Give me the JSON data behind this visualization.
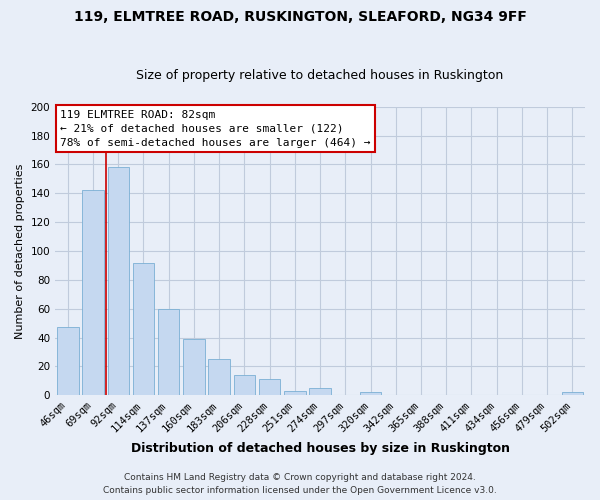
{
  "title": "119, ELMTREE ROAD, RUSKINGTON, SLEAFORD, NG34 9FF",
  "subtitle": "Size of property relative to detached houses in Ruskington",
  "xlabel": "Distribution of detached houses by size in Ruskington",
  "ylabel": "Number of detached properties",
  "categories": [
    "46sqm",
    "69sqm",
    "92sqm",
    "114sqm",
    "137sqm",
    "160sqm",
    "183sqm",
    "206sqm",
    "228sqm",
    "251sqm",
    "274sqm",
    "297sqm",
    "320sqm",
    "342sqm",
    "365sqm",
    "388sqm",
    "411sqm",
    "434sqm",
    "456sqm",
    "479sqm",
    "502sqm"
  ],
  "values": [
    47,
    142,
    158,
    92,
    60,
    39,
    25,
    14,
    11,
    3,
    5,
    0,
    2,
    0,
    0,
    0,
    0,
    0,
    0,
    0,
    2
  ],
  "bar_color": "#c5d8f0",
  "bar_edge_color": "#7bafd4",
  "vline_x_index": 1.5,
  "vline_color": "#cc0000",
  "annotation_title": "119 ELMTREE ROAD: 82sqm",
  "annotation_line1": "← 21% of detached houses are smaller (122)",
  "annotation_line2": "78% of semi-detached houses are larger (464) →",
  "annotation_box_color": "#ffffff",
  "annotation_box_edge": "#cc0000",
  "footer_line1": "Contains HM Land Registry data © Crown copyright and database right 2024.",
  "footer_line2": "Contains public sector information licensed under the Open Government Licence v3.0.",
  "ylim": [
    0,
    200
  ],
  "yticks": [
    0,
    20,
    40,
    60,
    80,
    100,
    120,
    140,
    160,
    180,
    200
  ],
  "title_fontsize": 10,
  "subtitle_fontsize": 9,
  "xlabel_fontsize": 9,
  "ylabel_fontsize": 8,
  "tick_fontsize": 7.5,
  "annotation_fontsize": 8,
  "footer_fontsize": 6.5,
  "bg_color": "#e8eef8"
}
